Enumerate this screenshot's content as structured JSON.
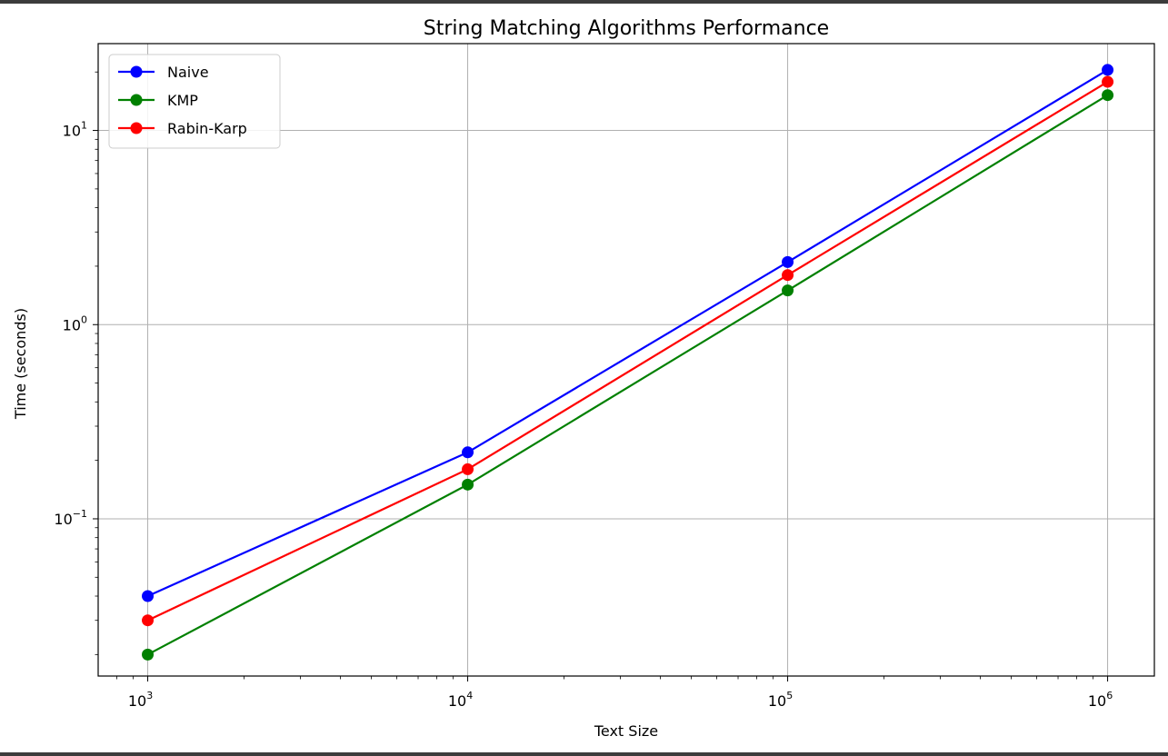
{
  "chart_data": {
    "type": "line",
    "title": "String Matching Algorithms Performance",
    "xlabel": "Text Size",
    "ylabel": "Time (seconds)",
    "x_scale": "log",
    "y_scale": "log",
    "x": [
      1000,
      10000,
      100000,
      1000000
    ],
    "x_ticks": [
      {
        "value": 1000,
        "base": "10",
        "exp": "3"
      },
      {
        "value": 10000,
        "base": "10",
        "exp": "4"
      },
      {
        "value": 100000,
        "base": "10",
        "exp": "5"
      },
      {
        "value": 1000000,
        "base": "10",
        "exp": "6"
      }
    ],
    "y_ticks": [
      {
        "value": 0.1,
        "base": "10",
        "exp": "−1"
      },
      {
        "value": 1,
        "base": "10",
        "exp": "0"
      },
      {
        "value": 10,
        "base": "10",
        "exp": "1"
      }
    ],
    "xlim": [
      700,
      1400000
    ],
    "ylim": [
      0.0155,
      28
    ],
    "grid": true,
    "legend_position": "top-left",
    "series": [
      {
        "name": "Naive",
        "color": "#0000ff",
        "values": [
          0.04,
          0.22,
          2.1,
          20.5
        ]
      },
      {
        "name": "KMP",
        "color": "#008000",
        "values": [
          0.02,
          0.15,
          1.5,
          15.2
        ]
      },
      {
        "name": "Rabin-Karp",
        "color": "#ff0000",
        "values": [
          0.03,
          0.18,
          1.8,
          17.8
        ]
      }
    ]
  }
}
